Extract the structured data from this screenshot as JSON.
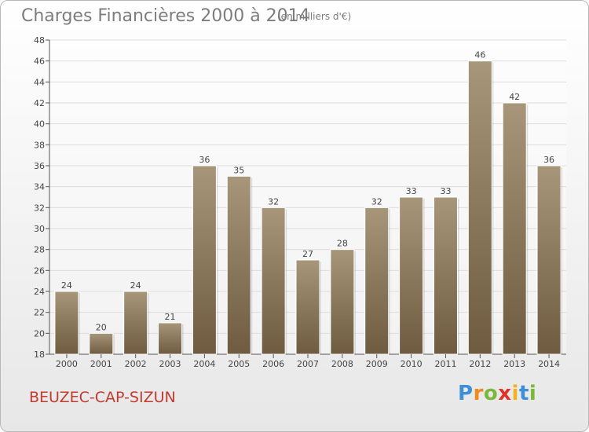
{
  "chart_data": {
    "type": "bar",
    "title": "Charges Financières 2000 à 2014",
    "subtitle": "(en milliers d'€)",
    "categories": [
      "2000",
      "2001",
      "2002",
      "2003",
      "2004",
      "2005",
      "2006",
      "2007",
      "2008",
      "2009",
      "2010",
      "2011",
      "2012",
      "2013",
      "2014"
    ],
    "values": [
      24,
      20,
      24,
      21,
      36,
      35,
      32,
      27,
      28,
      32,
      33,
      33,
      46,
      42,
      36
    ],
    "ylim": [
      18,
      48
    ],
    "yticks": [
      18,
      20,
      22,
      24,
      26,
      28,
      30,
      32,
      34,
      36,
      38,
      40,
      42,
      44,
      46,
      48
    ],
    "grid": true,
    "bar_color_top": "#a7967a",
    "bar_color_bottom": "#6e5b40"
  },
  "footer": {
    "commune": "BEUZEC-CAP-SIZUN",
    "brand_letters": [
      "P",
      "r",
      "o",
      "x",
      "i",
      "t",
      "i"
    ],
    "brand_colors": [
      "#3d8fd6",
      "#f08a1c",
      "#7ab83a",
      "#e2332b",
      "#f2b21b",
      "#3d8fd6",
      "#7ab83a"
    ]
  }
}
